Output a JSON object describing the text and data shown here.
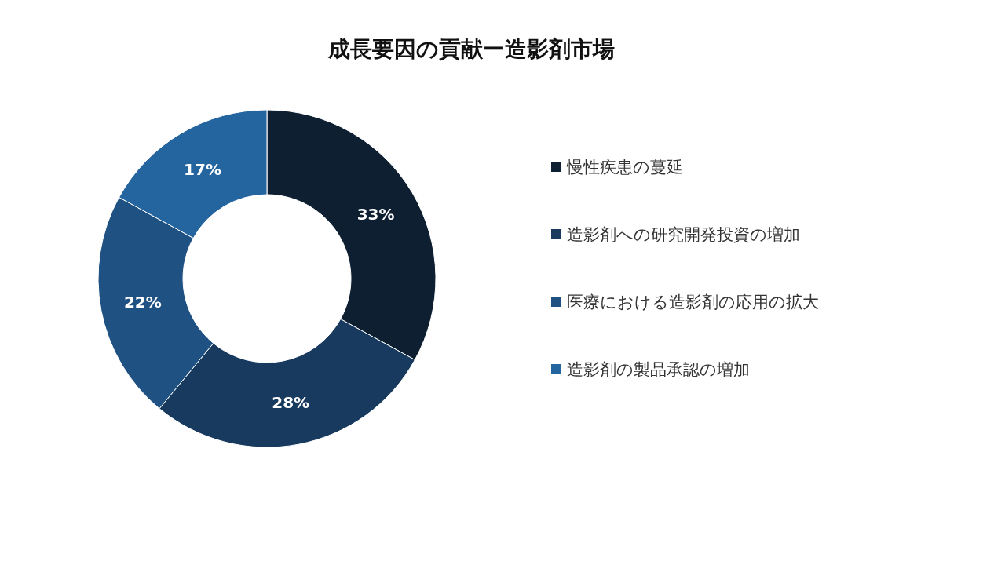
{
  "chart_data": {
    "type": "donut",
    "title": "成長要因の貢献ー造影剤市場",
    "categories": [
      "慢性疾患の蔓延",
      "造影剤への研究開発投資の増加",
      "医療における造影剤の応用の拡大",
      "造影剤の製品承認の増加"
    ],
    "values": [
      33,
      28,
      22,
      17
    ],
    "colors": [
      "#0d1f30",
      "#173a5e",
      "#1f5183",
      "#2465a0"
    ],
    "value_labels": [
      "33%",
      "28%",
      "22%",
      "17%"
    ],
    "legend": "right"
  }
}
